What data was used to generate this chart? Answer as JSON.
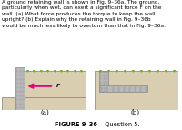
{
  "text_block": "A ground retaining wall is shown in Fig. 9–36a. The ground,\nparticularly when wet, can exert a significant force F on the\nwall. (a) What force produces the torque to keep the wall\nupright? (b) Explain why the retaining wall in Fig. 9–36b\nwould be much less likely to overturn than that in Fig. 9–36a.",
  "caption_bold": "FIGURE 9–36",
  "caption_normal": "  Question 5.",
  "label_a": "(a)",
  "label_b": "(b)",
  "arrow_label": "F",
  "wall_color": "#b8b8b8",
  "ground_color": "#d9ceaf",
  "grass_color": "#6aaa30",
  "arrow_color": "#e8007e",
  "wall_dot_color": "#a0a0a0",
  "text_color": "#000000",
  "fig_bg": "#ffffff",
  "edge_color": "#888888"
}
